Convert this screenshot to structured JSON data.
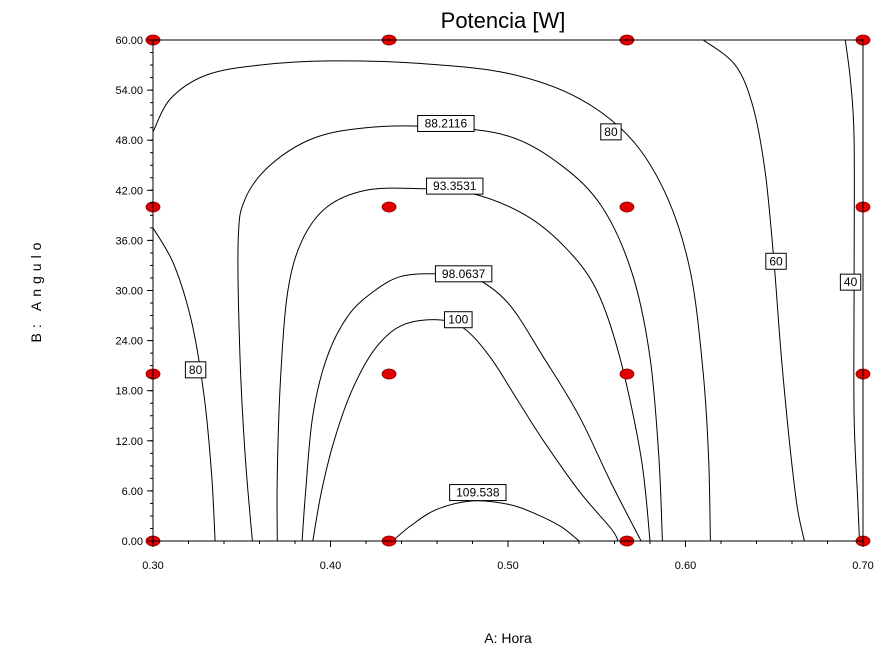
{
  "chart_data": {
    "type": "contour",
    "title": "Potencia [W]",
    "xlabel": "A: Hora",
    "ylabel": "B: Angulo",
    "xlim": [
      0.3,
      0.7
    ],
    "ylim": [
      0.0,
      60.0
    ],
    "x_ticks": [
      "0.30",
      "0.40",
      "0.50",
      "0.60",
      "0.70"
    ],
    "y_ticks": [
      "0.00",
      "6.00",
      "12.00",
      "18.00",
      "24.00",
      "30.00",
      "36.00",
      "42.00",
      "48.00",
      "54.00",
      "60.00"
    ],
    "grid": false,
    "design_points": [
      [
        0.3,
        60
      ],
      [
        0.433,
        60
      ],
      [
        0.567,
        60
      ],
      [
        0.7,
        60
      ],
      [
        0.3,
        40
      ],
      [
        0.433,
        40
      ],
      [
        0.567,
        40
      ],
      [
        0.7,
        40
      ],
      [
        0.3,
        20
      ],
      [
        0.433,
        20
      ],
      [
        0.567,
        20
      ],
      [
        0.7,
        20
      ],
      [
        0.3,
        0
      ],
      [
        0.433,
        0
      ],
      [
        0.567,
        0
      ],
      [
        0.7,
        0
      ]
    ],
    "point_color": "#e00000",
    "contours": [
      {
        "level": "80",
        "label_at": [
          0.324,
          20.5
        ],
        "points": [
          [
            0.3,
            37.5
          ],
          [
            0.312,
            33
          ],
          [
            0.322,
            26
          ],
          [
            0.329,
            17
          ],
          [
            0.333,
            8
          ],
          [
            0.335,
            0
          ]
        ]
      },
      {
        "level": "80",
        "label_at": [
          0.558,
          49.0
        ],
        "points": [
          [
            0.3,
            49
          ],
          [
            0.31,
            53
          ],
          [
            0.33,
            55.8
          ],
          [
            0.36,
            57
          ],
          [
            0.4,
            57.5
          ],
          [
            0.45,
            57.2
          ],
          [
            0.5,
            56
          ],
          [
            0.54,
            53
          ],
          [
            0.57,
            48
          ],
          [
            0.59,
            41
          ],
          [
            0.603,
            32
          ],
          [
            0.61,
            20
          ],
          [
            0.613,
            10
          ],
          [
            0.614,
            0
          ]
        ]
      },
      {
        "level": "60",
        "label_at": [
          0.651,
          33.5
        ],
        "points": [
          [
            0.61,
            60
          ],
          [
            0.628,
            57
          ],
          [
            0.638,
            52
          ],
          [
            0.645,
            44
          ],
          [
            0.65,
            33
          ],
          [
            0.654,
            22
          ],
          [
            0.659,
            11
          ],
          [
            0.663,
            4
          ],
          [
            0.667,
            0
          ]
        ]
      },
      {
        "level": "40",
        "label_at": [
          0.693,
          31.0
        ],
        "points": [
          [
            0.69,
            60
          ],
          [
            0.693,
            55
          ],
          [
            0.695,
            48
          ],
          [
            0.695,
            31
          ],
          [
            0.695,
            15
          ],
          [
            0.697,
            5
          ],
          [
            0.698,
            0
          ]
        ]
      },
      {
        "level": "88.2116",
        "label_at": [
          0.465,
          50.0
        ],
        "points": [
          [
            0.356,
            0
          ],
          [
            0.352,
            10
          ],
          [
            0.349,
            22
          ],
          [
            0.348,
            36
          ],
          [
            0.352,
            41
          ],
          [
            0.366,
            45
          ],
          [
            0.39,
            48.2
          ],
          [
            0.42,
            49.5
          ],
          [
            0.46,
            49.6
          ],
          [
            0.5,
            48.5
          ],
          [
            0.53,
            45
          ],
          [
            0.553,
            40
          ],
          [
            0.57,
            32
          ],
          [
            0.58,
            22
          ],
          [
            0.585,
            10
          ],
          [
            0.587,
            0
          ]
        ]
      },
      {
        "level": "93.3531",
        "label_at": [
          0.47,
          42.5
        ],
        "points": [
          [
            0.37,
            0
          ],
          [
            0.37,
            8
          ],
          [
            0.372,
            20
          ],
          [
            0.376,
            30
          ],
          [
            0.384,
            36
          ],
          [
            0.398,
            40
          ],
          [
            0.42,
            42
          ],
          [
            0.45,
            42.2
          ],
          [
            0.48,
            41.6
          ],
          [
            0.51,
            39
          ],
          [
            0.533,
            35
          ],
          [
            0.55,
            30
          ],
          [
            0.563,
            22
          ],
          [
            0.575,
            10
          ],
          [
            0.58,
            0
          ]
        ]
      },
      {
        "level": "98.0637",
        "label_at": [
          0.475,
          32.0
        ],
        "points": [
          [
            0.384,
            0
          ],
          [
            0.386,
            6
          ],
          [
            0.39,
            15
          ],
          [
            0.398,
            22
          ],
          [
            0.41,
            27
          ],
          [
            0.425,
            30
          ],
          [
            0.44,
            31.7
          ],
          [
            0.46,
            32
          ],
          [
            0.48,
            31.6
          ],
          [
            0.5,
            28.5
          ],
          [
            0.52,
            22
          ],
          [
            0.54,
            15
          ],
          [
            0.558,
            7
          ],
          [
            0.575,
            0
          ]
        ]
      },
      {
        "level": "100",
        "label_at": [
          0.472,
          26.5
        ],
        "points": [
          [
            0.39,
            0
          ],
          [
            0.395,
            6
          ],
          [
            0.402,
            12
          ],
          [
            0.412,
            18
          ],
          [
            0.425,
            23
          ],
          [
            0.44,
            25.8
          ],
          [
            0.46,
            26.5
          ],
          [
            0.475,
            25.5
          ],
          [
            0.49,
            22
          ],
          [
            0.505,
            17
          ],
          [
            0.52,
            12
          ],
          [
            0.54,
            6
          ],
          [
            0.558,
            1.5
          ],
          [
            0.562,
            0
          ]
        ]
      },
      {
        "level": "109.538",
        "label_at": [
          0.483,
          5.8
        ],
        "points": [
          [
            0.435,
            0
          ],
          [
            0.445,
            1.8
          ],
          [
            0.46,
            3.8
          ],
          [
            0.48,
            4.8
          ],
          [
            0.5,
            4.4
          ],
          [
            0.515,
            3.3
          ],
          [
            0.53,
            1.7
          ],
          [
            0.54,
            0
          ]
        ]
      }
    ]
  }
}
